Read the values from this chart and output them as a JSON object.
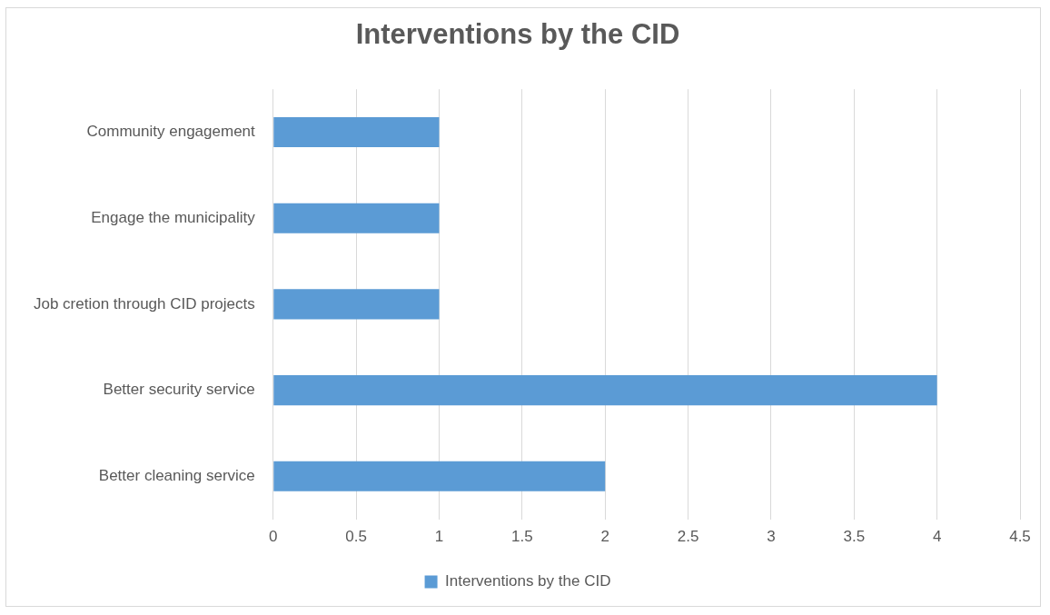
{
  "chart_data": {
    "type": "bar",
    "orientation": "horizontal",
    "title": "Interventions by the CID",
    "categories": [
      "Community engagement",
      "Engage the municipality",
      "Job cretion through CID projects",
      "Better security service",
      "Better cleaning service"
    ],
    "series": [
      {
        "name": "Interventions by the CID",
        "color": "#5b9bd5",
        "values": [
          1,
          1,
          1,
          4,
          2
        ]
      }
    ],
    "xlim": [
      0,
      4.5
    ],
    "xticks": [
      0,
      0.5,
      1,
      1.5,
      2,
      2.5,
      3,
      3.5,
      4,
      4.5
    ],
    "grid": "x",
    "legend": "bottom"
  }
}
